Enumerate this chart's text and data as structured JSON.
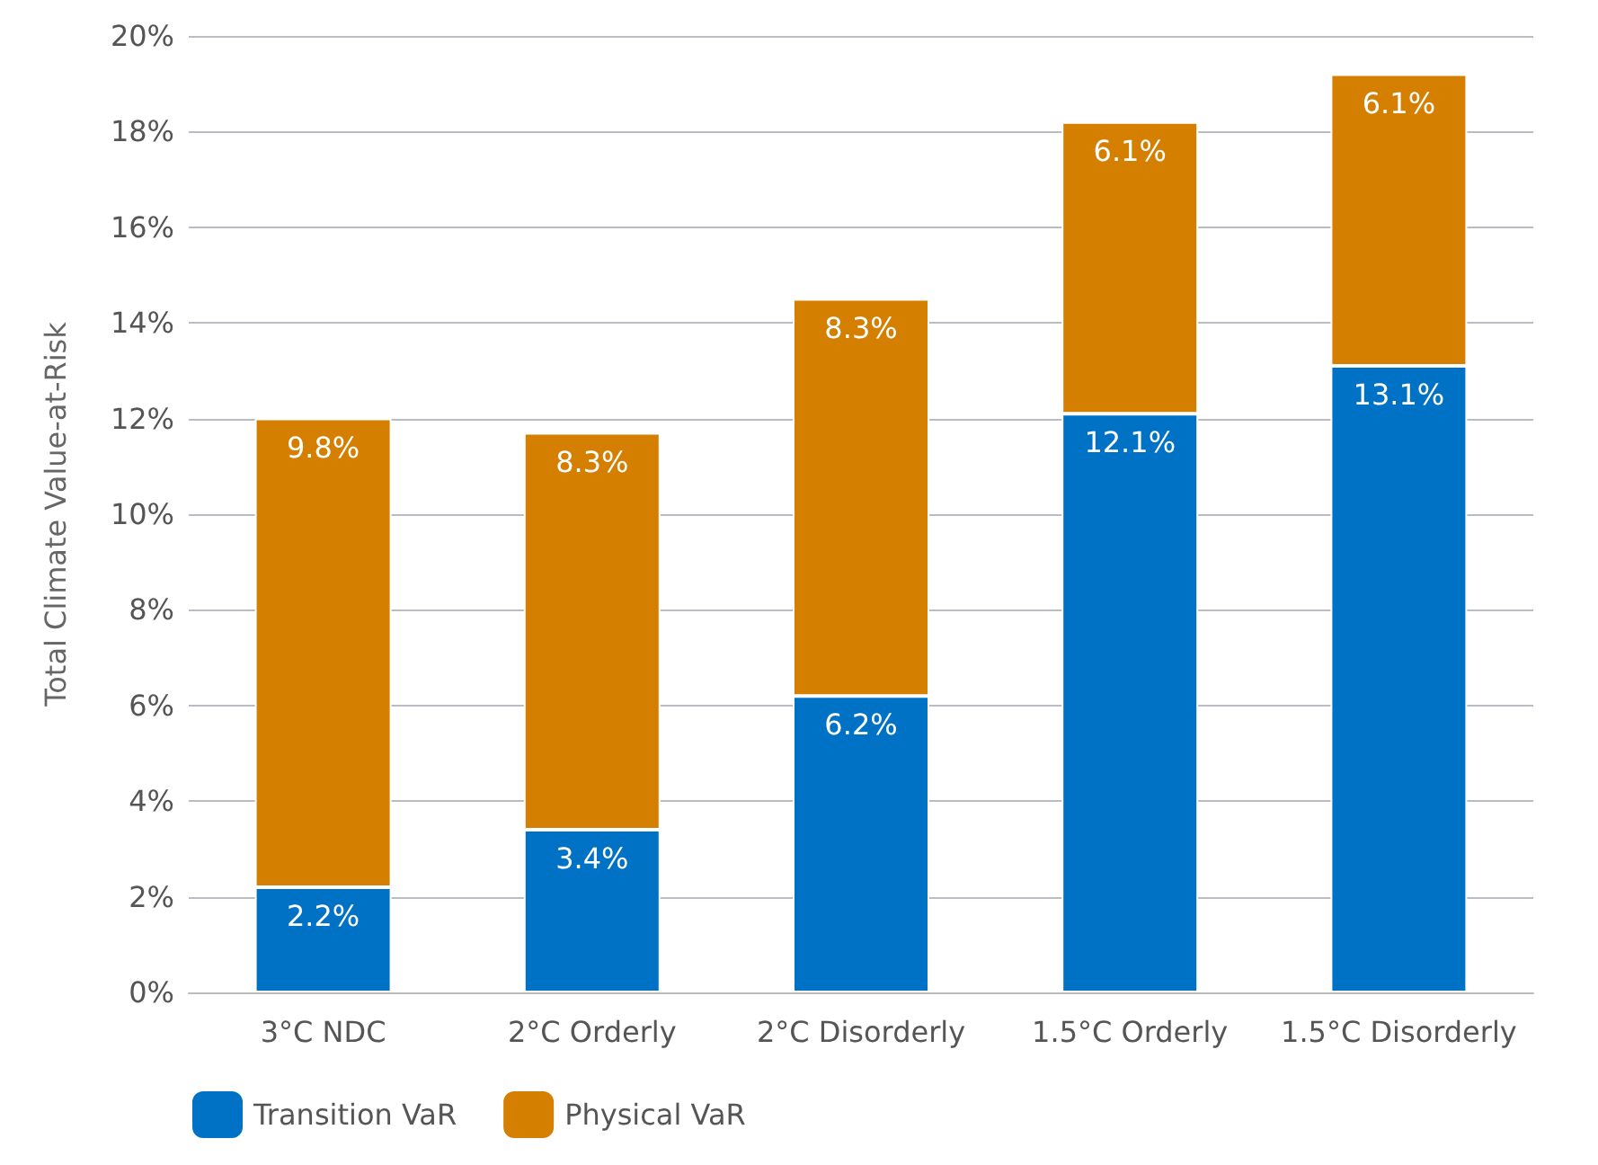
{
  "chart_data": {
    "type": "bar",
    "stacked": true,
    "ylabel": "Total Climate Value-at-Risk",
    "categories": [
      "3°C NDC",
      "2°C Orderly",
      "2°C Disorderly",
      "1.5°C Orderly",
      "1.5°C Disorderly"
    ],
    "series": [
      {
        "name": "Transition VaR",
        "color": "#0072c6",
        "values": [
          2.2,
          3.4,
          6.2,
          12.1,
          13.1
        ],
        "value_labels": [
          "2.2%",
          "3.4%",
          "6.2%",
          "12.1%",
          "13.1%"
        ]
      },
      {
        "name": "Physical VaR",
        "color": "#d47f00",
        "values": [
          9.8,
          8.3,
          8.3,
          6.1,
          6.1
        ],
        "value_labels": [
          "9.8%",
          "8.3%",
          "8.3%",
          "6.1%",
          "6.1%"
        ]
      }
    ],
    "ylim": [
      0,
      20
    ],
    "yticks": [
      {
        "value": 0,
        "label": "0%"
      },
      {
        "value": 2,
        "label": "2%"
      },
      {
        "value": 4,
        "label": "4%"
      },
      {
        "value": 6,
        "label": "6%"
      },
      {
        "value": 8,
        "label": "8%"
      },
      {
        "value": 10,
        "label": "10%"
      },
      {
        "value": 12,
        "label": "12%"
      },
      {
        "value": 14,
        "label": "14%"
      },
      {
        "value": 16,
        "label": "16%"
      },
      {
        "value": 18,
        "label": "18%"
      },
      {
        "value": 20,
        "label": "20%"
      }
    ],
    "grid": "y",
    "legend": "bottom left"
  }
}
